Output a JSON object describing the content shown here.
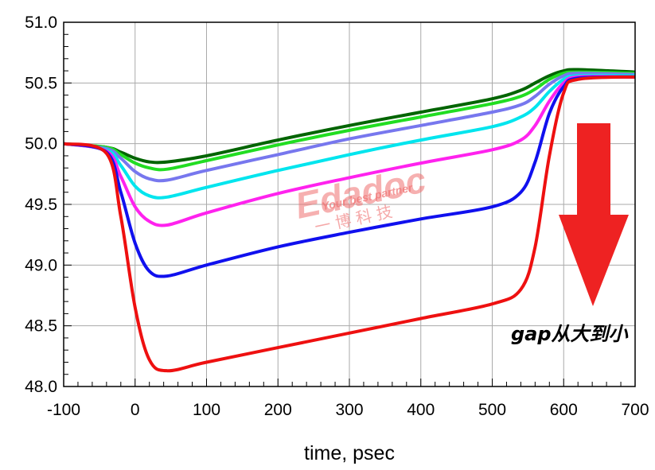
{
  "chart_data": {
    "type": "line",
    "xlabel": "time, psec",
    "ylabel": "",
    "xlim": [
      -100,
      700
    ],
    "ylim": [
      48.0,
      51.0
    ],
    "x_ticks": [
      -100,
      0,
      100,
      200,
      300,
      400,
      500,
      600,
      700
    ],
    "y_ticks": [
      48.0,
      48.5,
      49.0,
      49.5,
      50.0,
      50.5,
      51.0
    ],
    "grid": true,
    "annotation": "gap从大到小",
    "watermark": {
      "main": "Edadoc",
      "sub": "Your best partner",
      "cn": "一 博 科 技"
    },
    "x": [
      -100,
      -40,
      -20,
      0,
      20,
      45,
      100,
      200,
      300,
      400,
      500,
      540,
      560,
      580,
      600,
      620,
      700
    ],
    "series": [
      {
        "color": "#006400",
        "values": [
          50.0,
          49.97,
          49.93,
          49.88,
          49.85,
          49.85,
          49.9,
          50.03,
          50.15,
          50.26,
          50.37,
          50.44,
          50.5,
          50.56,
          50.6,
          50.61,
          50.59
        ]
      },
      {
        "color": "#22dd22",
        "values": [
          50.0,
          49.97,
          49.91,
          49.84,
          49.8,
          49.79,
          49.86,
          49.99,
          50.11,
          50.22,
          50.33,
          50.39,
          50.45,
          50.53,
          50.58,
          50.59,
          50.58
        ]
      },
      {
        "color": "#7777ee",
        "values": [
          50.0,
          49.96,
          49.88,
          49.77,
          49.71,
          49.7,
          49.78,
          49.91,
          50.04,
          50.15,
          50.26,
          50.32,
          50.39,
          50.49,
          50.56,
          50.58,
          50.57
        ]
      },
      {
        "color": "#00e5ee",
        "values": [
          50.0,
          49.95,
          49.82,
          49.65,
          49.57,
          49.56,
          49.64,
          49.78,
          49.91,
          50.03,
          50.14,
          50.22,
          50.3,
          50.43,
          50.53,
          50.56,
          50.56
        ]
      },
      {
        "color": "#ff22ee",
        "values": [
          50.0,
          49.94,
          49.73,
          49.48,
          49.36,
          49.33,
          49.43,
          49.59,
          49.72,
          49.84,
          49.95,
          50.03,
          50.15,
          50.35,
          50.5,
          50.55,
          50.55
        ]
      },
      {
        "color": "#1010ee",
        "values": [
          50.0,
          49.93,
          49.6,
          49.18,
          48.95,
          48.91,
          49.0,
          49.15,
          49.27,
          49.38,
          49.48,
          49.6,
          49.85,
          50.25,
          50.47,
          50.54,
          50.55
        ]
      },
      {
        "color": "#ee1010",
        "values": [
          50.0,
          49.92,
          49.4,
          48.65,
          48.22,
          48.13,
          48.2,
          48.32,
          48.44,
          48.56,
          48.68,
          48.8,
          49.15,
          49.9,
          50.42,
          50.53,
          50.55
        ]
      }
    ],
    "arrow_color": "#ee2222"
  }
}
